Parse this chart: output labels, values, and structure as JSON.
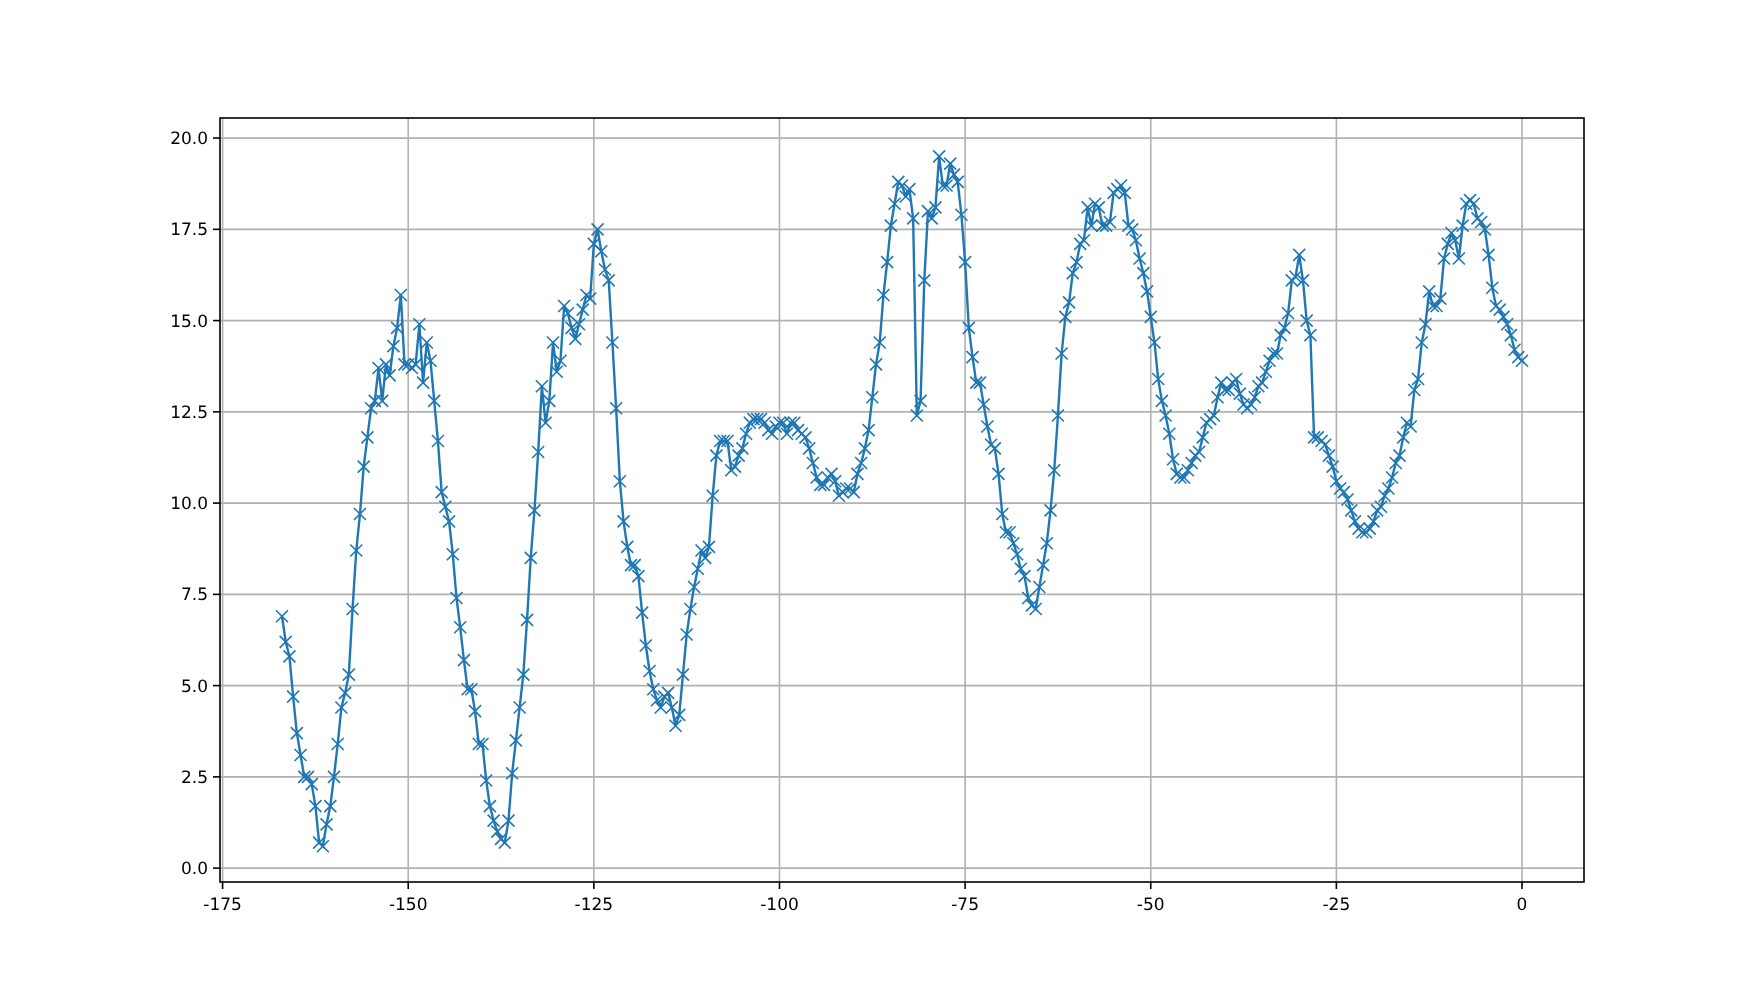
{
  "chart_data": {
    "type": "line",
    "x": [
      -167,
      -166.5,
      -166,
      -165.5,
      -165,
      -164.5,
      -164,
      -163.5,
      -163,
      -162.5,
      -162,
      -161.5,
      -161,
      -160.5,
      -160,
      -159.5,
      -159,
      -158.5,
      -158,
      -157.5,
      -157,
      -156.5,
      -156,
      -155.5,
      -155,
      -154.5,
      -154,
      -153.5,
      -153,
      -152.5,
      -152,
      -151.5,
      -151,
      -150.5,
      -150,
      -149.5,
      -149,
      -148.5,
      -148,
      -147.5,
      -147,
      -146.5,
      -146,
      -145.5,
      -145,
      -144.5,
      -144,
      -143.5,
      -143,
      -142.5,
      -142,
      -141.5,
      -141,
      -140.5,
      -140,
      -139.5,
      -139,
      -138.5,
      -138,
      -137.5,
      -137,
      -136.5,
      -136,
      -135.5,
      -135,
      -134.5,
      -134,
      -133.5,
      -133,
      -132.5,
      -132,
      -131.5,
      -131,
      -130.5,
      -130,
      -129.5,
      -129,
      -128.5,
      -128,
      -127.5,
      -127,
      -126.5,
      -126,
      -125.5,
      -125,
      -124.5,
      -124,
      -123.5,
      -123,
      -122.5,
      -122,
      -121.5,
      -121,
      -120.5,
      -120,
      -119.5,
      -119,
      -118.5,
      -118,
      -117.5,
      -117,
      -116.5,
      -116,
      -115.5,
      -115,
      -114.5,
      -114,
      -113.5,
      -113,
      -112.5,
      -112,
      -111.5,
      -111,
      -110.5,
      -110,
      -109.5,
      -109,
      -108.5,
      -108,
      -107.5,
      -107,
      -106.5,
      -106,
      -105.5,
      -105,
      -104.5,
      -104,
      -103.5,
      -103,
      -102.5,
      -102,
      -101.5,
      -101,
      -100.5,
      -100,
      -99.5,
      -99,
      -98.5,
      -98,
      -97.5,
      -97,
      -96.5,
      -96,
      -95.5,
      -95,
      -94.5,
      -94,
      -93.5,
      -93,
      -92.5,
      -92,
      -91.5,
      -91,
      -90.5,
      -90,
      -89.5,
      -89,
      -88.5,
      -88,
      -87.5,
      -87,
      -86.5,
      -86,
      -85.5,
      -85,
      -84.5,
      -84,
      -83.5,
      -83,
      -82.5,
      -82,
      -81.5,
      -81,
      -80.5,
      -80,
      -79.5,
      -79,
      -78.5,
      -78,
      -77.5,
      -77,
      -76.5,
      -76,
      -75.5,
      -75,
      -74.5,
      -74,
      -73.5,
      -73,
      -72.5,
      -72,
      -71.5,
      -71,
      -70.5,
      -70,
      -69.5,
      -69,
      -68.5,
      -68,
      -67.5,
      -67,
      -66.5,
      -66,
      -65.5,
      -65,
      -64.5,
      -64,
      -63.5,
      -63,
      -62.5,
      -62,
      -61.5,
      -61,
      -60.5,
      -60,
      -59.5,
      -59,
      -58.5,
      -58,
      -57.5,
      -57,
      -56.5,
      -56,
      -55.5,
      -55,
      -54.5,
      -54,
      -53.5,
      -53,
      -52.5,
      -52,
      -51.5,
      -51,
      -50.5,
      -50,
      -49.5,
      -49,
      -48.5,
      -48,
      -47.5,
      -47,
      -46.5,
      -46,
      -45.5,
      -45,
      -44.5,
      -44,
      -43.5,
      -43,
      -42.5,
      -42,
      -41.5,
      -41,
      -40.5,
      -40,
      -39.5,
      -39,
      -38.5,
      -38,
      -37.5,
      -37,
      -36.5,
      -36,
      -35.5,
      -35,
      -34.5,
      -34,
      -33.5,
      -33,
      -32.5,
      -32,
      -31.5,
      -31,
      -30.5,
      -30,
      -29.5,
      -29,
      -28.5,
      -28,
      -27.5,
      -27,
      -26.5,
      -26,
      -25.5,
      -25,
      -24.5,
      -24,
      -23.5,
      -23,
      -22.5,
      -22,
      -21.5,
      -21,
      -20.5,
      -20,
      -19.5,
      -19,
      -18.5,
      -18,
      -17.5,
      -17,
      -16.5,
      -16,
      -15.5,
      -15,
      -14.5,
      -14,
      -13.5,
      -13,
      -12.5,
      -12,
      -11.5,
      -11,
      -10.5,
      -10,
      -9.5,
      -9,
      -8.5,
      -8,
      -7.5,
      -7,
      -6.5,
      -6,
      -5.5,
      -5,
      -4.5,
      -4,
      -3.5,
      -3,
      -2.5,
      -2,
      -1.5,
      -1,
      -0.5,
      0
    ],
    "series": [
      {
        "color": "#1f77b4",
        "values": [
          6.9,
          6.2,
          5.8,
          4.7,
          3.7,
          3.1,
          2.5,
          2.5,
          2.3,
          1.7,
          0.7,
          0.6,
          1.2,
          1.7,
          2.5,
          3.4,
          4.4,
          4.8,
          5.3,
          7.1,
          8.7,
          9.7,
          11.0,
          11.8,
          12.6,
          12.8,
          13.7,
          12.8,
          13.8,
          13.5,
          14.3,
          14.8,
          15.7,
          13.8,
          13.8,
          13.7,
          13.8,
          14.9,
          13.3,
          14.4,
          13.9,
          12.8,
          11.7,
          10.3,
          9.9,
          9.5,
          8.6,
          7.4,
          6.6,
          5.7,
          4.9,
          4.9,
          4.3,
          3.4,
          3.4,
          2.4,
          1.7,
          1.3,
          1.0,
          0.8,
          0.7,
          1.3,
          2.6,
          3.5,
          4.4,
          5.3,
          6.8,
          8.5,
          9.8,
          11.4,
          13.2,
          12.2,
          12.8,
          14.4,
          13.6,
          13.9,
          15.4,
          15.2,
          14.8,
          14.5,
          14.9,
          15.3,
          15.7,
          15.6,
          17.1,
          17.5,
          16.9,
          16.4,
          16.1,
          14.4,
          12.6,
          10.6,
          9.5,
          8.8,
          8.3,
          8.3,
          8.0,
          7.0,
          6.1,
          5.4,
          4.9,
          4.6,
          4.4,
          4.7,
          4.8,
          4.4,
          3.9,
          4.2,
          5.3,
          6.4,
          7.1,
          7.7,
          8.2,
          8.7,
          8.5,
          8.8,
          10.2,
          11.3,
          11.7,
          11.7,
          11.7,
          10.9,
          11.0,
          11.3,
          11.5,
          11.9,
          12.2,
          12.3,
          12.3,
          12.3,
          12.2,
          12.0,
          11.9,
          12.1,
          12.2,
          12.2,
          11.9,
          12.2,
          12.2,
          12.0,
          11.9,
          11.8,
          11.5,
          11.1,
          10.7,
          10.5,
          10.5,
          10.7,
          10.8,
          10.6,
          10.2,
          10.3,
          10.4,
          10.4,
          10.3,
          10.8,
          11.1,
          11.5,
          12.0,
          12.9,
          13.8,
          14.4,
          15.7,
          16.6,
          17.6,
          18.2,
          18.8,
          18.7,
          18.4,
          18.6,
          17.8,
          12.4,
          12.8,
          16.1,
          18.0,
          17.8,
          18.1,
          19.5,
          18.7,
          18.7,
          19.3,
          19.0,
          18.8,
          17.9,
          16.6,
          14.8,
          14.0,
          13.3,
          13.3,
          12.7,
          12.1,
          11.6,
          11.5,
          10.8,
          9.7,
          9.2,
          9.2,
          8.9,
          8.6,
          8.2,
          8.0,
          7.4,
          7.2,
          7.1,
          7.7,
          8.3,
          8.9,
          9.8,
          10.9,
          12.4,
          14.1,
          15.1,
          15.5,
          16.3,
          16.6,
          17.1,
          17.2,
          18.1,
          17.6,
          18.2,
          18.1,
          17.6,
          17.6,
          17.7,
          18.5,
          18.6,
          18.7,
          18.5,
          17.6,
          17.5,
          17.2,
          16.7,
          16.3,
          15.8,
          15.1,
          14.4,
          13.4,
          12.8,
          12.4,
          11.9,
          11.2,
          10.8,
          10.7,
          10.7,
          10.9,
          11.1,
          11.3,
          11.4,
          11.8,
          12.2,
          12.3,
          12.4,
          12.9,
          13.3,
          13.1,
          13.1,
          13.3,
          13.4,
          13.0,
          12.7,
          12.6,
          12.7,
          12.9,
          13.2,
          13.3,
          13.6,
          13.9,
          14.1,
          14.1,
          14.6,
          14.8,
          15.2,
          16.1,
          16.2,
          16.8,
          16.1,
          15.0,
          14.6,
          11.8,
          11.8,
          11.7,
          11.6,
          11.3,
          11.0,
          10.6,
          10.4,
          10.3,
          10.1,
          9.8,
          9.5,
          9.3,
          9.2,
          9.2,
          9.3,
          9.5,
          9.8,
          9.9,
          10.2,
          10.4,
          10.7,
          11.1,
          11.3,
          11.8,
          12.2,
          12.1,
          13.1,
          13.4,
          14.4,
          14.9,
          15.8,
          15.4,
          15.4,
          15.6,
          16.7,
          17.1,
          17.4,
          17.2,
          16.7,
          17.6,
          18.2,
          18.3,
          18.2,
          17.8,
          17.7,
          17.5,
          16.8,
          15.9,
          15.4,
          15.3,
          15.1,
          14.9,
          14.6,
          14.2,
          14.0,
          13.9
        ]
      }
    ],
    "xlim": [
      -175.35,
      8.35
    ],
    "ylim": [
      -0.38,
      20.55
    ],
    "xticks": [
      -175,
      -150,
      -125,
      -100,
      -75,
      -50,
      -25,
      0
    ],
    "yticks": [
      {
        "value": 0,
        "label": "0.0"
      },
      {
        "value": 2.5,
        "label": "2.5"
      },
      {
        "value": 5,
        "label": "5.0"
      },
      {
        "value": 7.5,
        "label": "7.5"
      },
      {
        "value": 10,
        "label": "10.0"
      },
      {
        "value": 12.5,
        "label": "12.5"
      },
      {
        "value": 15,
        "label": "15.0"
      },
      {
        "value": 17.5,
        "label": "17.5"
      },
      {
        "value": 20,
        "label": "20.0"
      }
    ],
    "grid": true,
    "marker": "cross",
    "line_style": "solid"
  }
}
